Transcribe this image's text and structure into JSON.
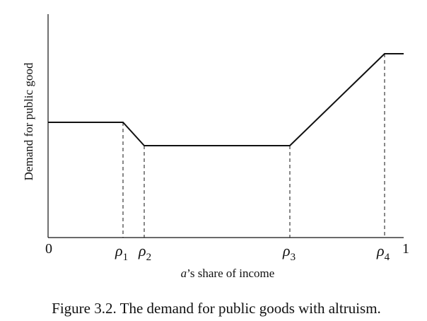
{
  "chart_data": {
    "type": "line",
    "x": [
      "0",
      "ρ1",
      "ρ2",
      "ρ3",
      "ρ4",
      "1"
    ],
    "series": [
      {
        "values": [
          "high",
          "high",
          "low",
          "low",
          "peak",
          "peak"
        ]
      }
    ],
    "xlabel": {
      "italic": "a",
      "rest": "’s share of income"
    },
    "ylabel": "Demand for public good",
    "ticks": {
      "origin": "0",
      "end": "1",
      "rho": [
        {
          "symbol": "ρ",
          "sub": "1"
        },
        {
          "symbol": "ρ",
          "sub": "2"
        },
        {
          "symbol": "ρ",
          "sub": "3"
        },
        {
          "symbol": "ρ",
          "sub": "4"
        }
      ]
    },
    "guides": [
      "ρ1",
      "ρ2",
      "ρ3",
      "ρ4"
    ],
    "grid": false,
    "legend": "none"
  },
  "caption": "Figure 3.2. The demand for public goods with altruism."
}
